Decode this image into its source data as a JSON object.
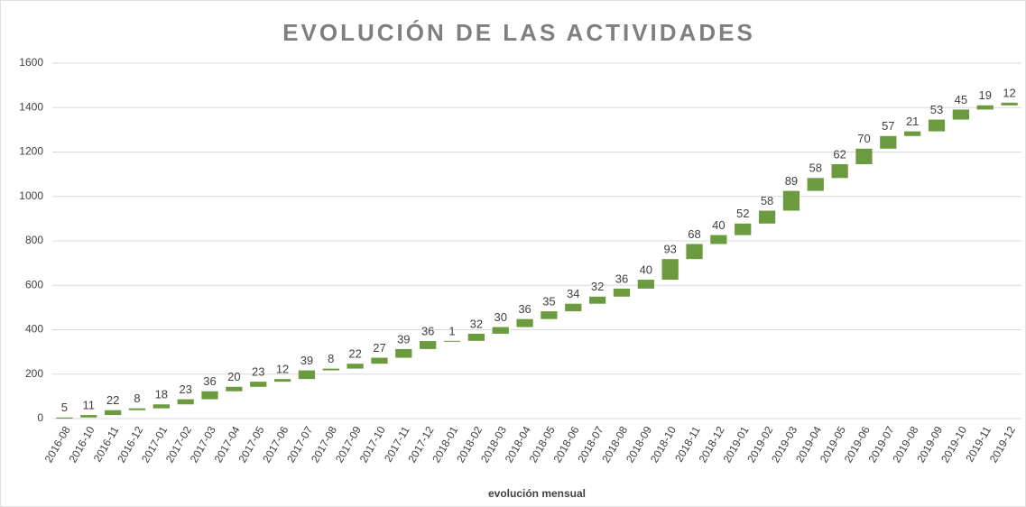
{
  "chart_data": {
    "type": "waterfall",
    "title": "EVOLUCIÓN DE LAS ACTIVIDADES",
    "x_label": "evolución mensual",
    "categories": [
      "2016-08",
      "2016-10",
      "2016-11",
      "2016-12",
      "2017-01",
      "2017-02",
      "2017-03",
      "2017-04",
      "2017-05",
      "2017-06",
      "2017-07",
      "2017-08",
      "2017-09",
      "2017-10",
      "2017-11",
      "2017-12",
      "2018-01",
      "2018-02",
      "2018-03",
      "2018-04",
      "2018-05",
      "2018-06",
      "2018-07",
      "2018-08",
      "2018-09",
      "2018-10",
      "2018-11",
      "2018-12",
      "2019-01",
      "2019-02",
      "2019-03",
      "2019-04",
      "2019-05",
      "2019-06",
      "2019-07",
      "2019-08",
      "2019-09",
      "2019-10",
      "2019-11",
      "2019-12"
    ],
    "values": [
      5,
      11,
      22,
      8,
      18,
      23,
      36,
      20,
      23,
      12,
      39,
      8,
      22,
      27,
      39,
      36,
      1,
      32,
      30,
      36,
      35,
      34,
      32,
      36,
      40,
      93,
      68,
      40,
      52,
      58,
      89,
      58,
      62,
      70,
      57,
      21,
      53,
      45,
      19,
      12
    ],
    "color": "#6b9b3e",
    "ylim": [
      0,
      1600
    ],
    "yticks": [
      0,
      200,
      400,
      600,
      800,
      1000,
      1200,
      1400,
      1600
    ],
    "grid": true
  }
}
